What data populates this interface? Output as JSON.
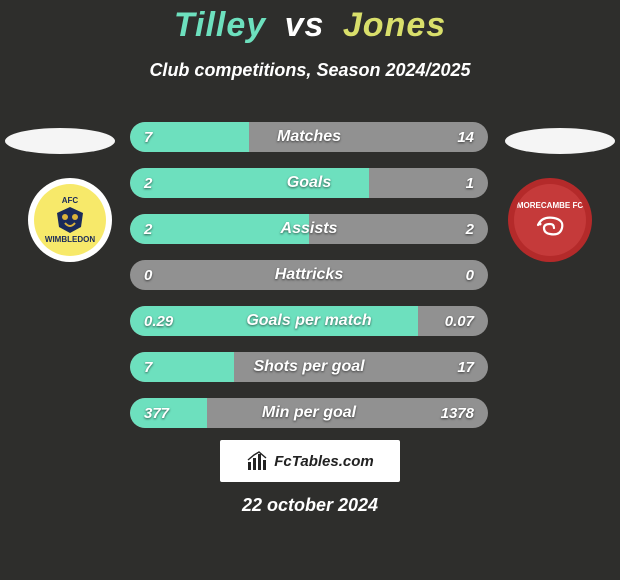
{
  "background_color": "#2e2e2c",
  "title": {
    "left_name": "Tilley",
    "vs": "vs",
    "right_name": "Jones",
    "left_color": "#6de0be",
    "mid_color": "#ffffff",
    "right_color": "#d9df6b",
    "fontsize": 34
  },
  "subtitle": {
    "text": "Club competitions, Season 2024/2025",
    "color": "#ffffff",
    "fontsize": 18
  },
  "avatars": {
    "left_bg": "#f5f5f5",
    "right_bg": "#f5f5f5"
  },
  "clubs": {
    "left": {
      "outer_bg": "#ffffff",
      "inner_bg": "#f7e96a",
      "text_top": "AFC",
      "text_bottom": "WIMBLEDON",
      "text_color": "#1a2a5a"
    },
    "right": {
      "outer_bg": "#b42a2a",
      "inner_bg": "#c53a3a",
      "text_top": "MORECAMBE FC",
      "text_bottom": "",
      "text_color": "#ffffff"
    }
  },
  "bars": {
    "track_color": "#919191",
    "left_fill_color": "#6de0be",
    "text_color": "#ffffff",
    "label_fontsize": 16,
    "value_fontsize": 15,
    "rows": [
      {
        "label": "Matches",
        "left": "7",
        "right": "14",
        "left_num": 7,
        "right_num": 14
      },
      {
        "label": "Goals",
        "left": "2",
        "right": "1",
        "left_num": 2,
        "right_num": 1
      },
      {
        "label": "Assists",
        "left": "2",
        "right": "2",
        "left_num": 2,
        "right_num": 2
      },
      {
        "label": "Hattricks",
        "left": "0",
        "right": "0",
        "left_num": 0,
        "right_num": 0
      },
      {
        "label": "Goals per match",
        "left": "0.29",
        "right": "0.07",
        "left_num": 0.29,
        "right_num": 0.07
      },
      {
        "label": "Shots per goal",
        "left": "7",
        "right": "17",
        "left_num": 7,
        "right_num": 17
      },
      {
        "label": "Min per goal",
        "left": "377",
        "right": "1378",
        "left_num": 377,
        "right_num": 1378
      }
    ]
  },
  "logo": {
    "text": "FcTables.com",
    "bg": "#ffffff",
    "text_color": "#222222"
  },
  "date": {
    "text": "22 october 2024",
    "color": "#ffffff"
  }
}
